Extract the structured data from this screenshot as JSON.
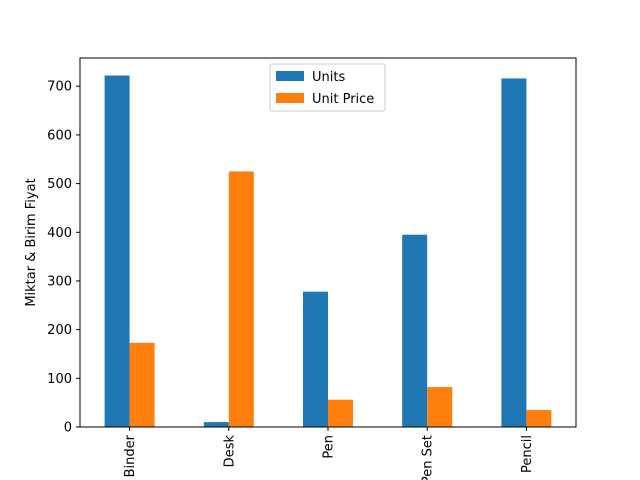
{
  "chart_data": {
    "type": "bar",
    "title": "",
    "xlabel": "",
    "ylabel": "Miktar & Birim Fiyat",
    "categories": [
      "Binder",
      "Desk",
      "Pen",
      "Pen Set",
      "Pencil"
    ],
    "series": [
      {
        "name": "Units",
        "color": "#1f77b4",
        "values": [
          722,
          10,
          278,
          395,
          716
        ]
      },
      {
        "name": "Unit Price",
        "color": "#ff7f0e",
        "values": [
          173,
          525,
          56,
          82,
          35
        ]
      }
    ],
    "ylim": [
      0,
      758
    ],
    "yticks": [
      0,
      100,
      200,
      300,
      400,
      500,
      600,
      700
    ],
    "grid": false,
    "legend_position": "top-center"
  }
}
